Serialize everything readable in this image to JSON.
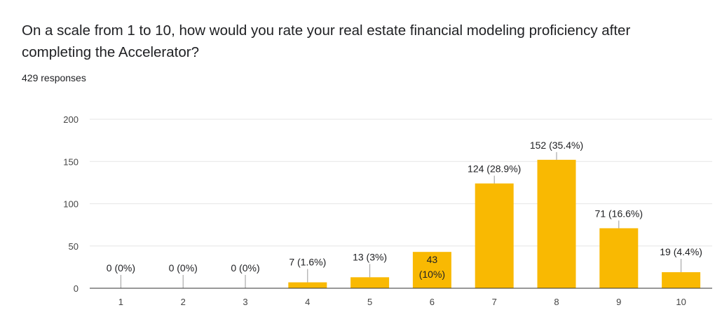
{
  "form": {
    "question": "On a scale from 1 to 10, how would you rate your real estate financial modeling proficiency after completing the Accelerator?",
    "responses": "429 responses"
  },
  "colors": {
    "bar": "#f9b902",
    "grid": "#e6e6e6",
    "axis": "#333333"
  },
  "chart_data": {
    "type": "bar",
    "categories": [
      "1",
      "2",
      "3",
      "4",
      "5",
      "6",
      "7",
      "8",
      "9",
      "10"
    ],
    "values": [
      0,
      0,
      0,
      7,
      13,
      43,
      124,
      152,
      71,
      19
    ],
    "data_labels": [
      "0 (0%)",
      "0 (0%)",
      "0 (0%)",
      "7 (1.6%)",
      "13 (3%)",
      "43 (10%)",
      "124 (28.9%)",
      "152 (35.4%)",
      "71 (16.6%)",
      "19 (4.4%)"
    ],
    "title": "",
    "xlabel": "",
    "ylabel": "",
    "ylim": [
      0,
      200
    ],
    "yticks": [
      0,
      50,
      100,
      150,
      200
    ],
    "grid": true,
    "legend": "none"
  }
}
